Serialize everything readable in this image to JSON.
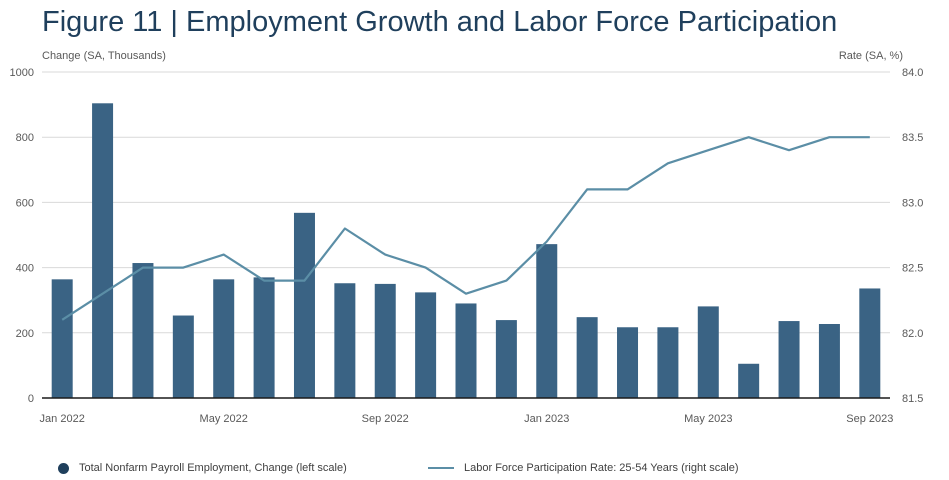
{
  "chart_data": {
    "type": "bar",
    "title": "Figure 11 | Employment Growth and Labor Force Participation",
    "left_axis_label": "Change (SA, Thousands)",
    "right_axis_label": "Rate (SA, %)",
    "categories": [
      "Jan 2022",
      "Feb 2022",
      "Mar 2022",
      "Apr 2022",
      "May 2022",
      "Jun 2022",
      "Jul 2022",
      "Aug 2022",
      "Sep 2022",
      "Oct 2022",
      "Nov 2022",
      "Dec 2022",
      "Jan 2023",
      "Feb 2023",
      "Mar 2023",
      "Apr 2023",
      "May 2023",
      "Jun 2023",
      "Jul 2023",
      "Aug 2023",
      "Sep 2023"
    ],
    "x_tick_labels": [
      "Jan 2022",
      "May 2022",
      "Sep 2022",
      "Jan 2023",
      "May 2023",
      "Sep 2023"
    ],
    "left_ticks": [
      "0",
      "200",
      "400",
      "600",
      "800",
      "1000"
    ],
    "right_ticks": [
      "81.5",
      "82.0",
      "82.5",
      "83.0",
      "83.5",
      "84.0"
    ],
    "ylim_left": [
      0,
      1000
    ],
    "ylim_right": [
      81.5,
      84.0
    ],
    "grid": true,
    "legend_position": "bottom",
    "series": [
      {
        "name": "Total Nonfarm Payroll Employment, Change (left scale)",
        "type": "bar",
        "axis": "left",
        "color": "#3a6384",
        "values": [
          364,
          904,
          414,
          253,
          364,
          370,
          568,
          352,
          350,
          324,
          290,
          239,
          472,
          248,
          217,
          217,
          281,
          105,
          236,
          227,
          336
        ]
      },
      {
        "name": "Labor Force Participation Rate: 25-54 Years (right scale)",
        "type": "line",
        "axis": "right",
        "color": "#5b8ea6",
        "values": [
          82.1,
          82.3,
          82.5,
          82.5,
          82.6,
          82.4,
          82.4,
          82.8,
          82.6,
          82.5,
          82.3,
          82.4,
          82.7,
          83.1,
          83.1,
          83.3,
          83.4,
          83.5,
          83.4,
          83.5,
          83.5
        ]
      }
    ]
  }
}
